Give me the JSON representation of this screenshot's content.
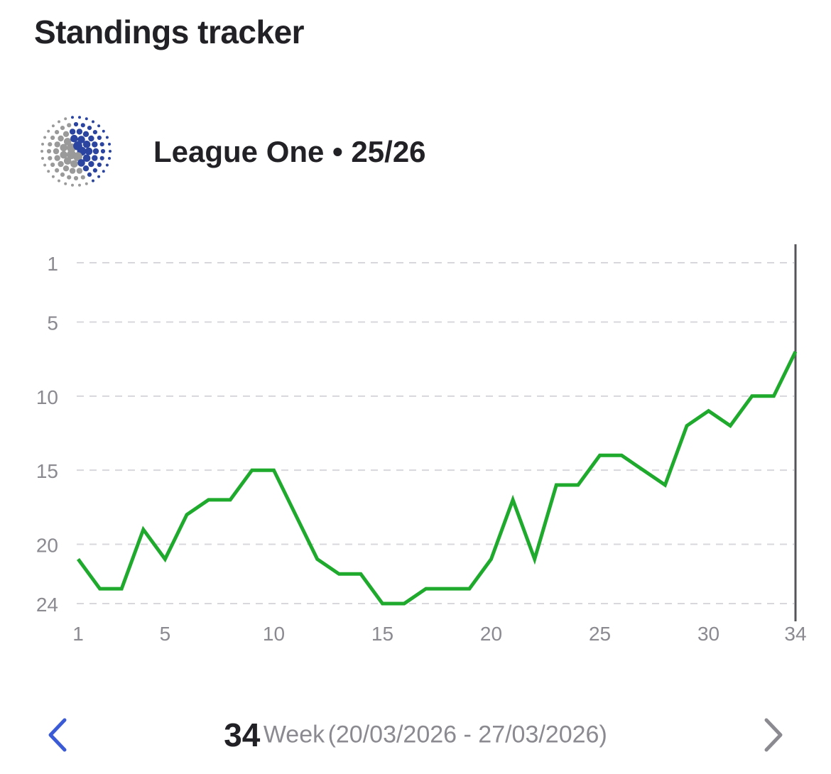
{
  "header": {
    "title": "Standings tracker"
  },
  "league": {
    "name": "League One • 25/26"
  },
  "colors": {
    "line": "#1faa2e",
    "text": "#222226",
    "muted": "#8a8a90",
    "prev": "#3b5bd6",
    "next": "#8a8a90"
  },
  "icons": {
    "prev": "chevron-left-icon",
    "next": "chevron-right-icon",
    "logo": "league-one-logo"
  },
  "chart_data": {
    "type": "line",
    "title": "",
    "xlabel": "",
    "ylabel": "",
    "x": [
      1,
      2,
      3,
      4,
      5,
      6,
      7,
      8,
      9,
      10,
      11,
      12,
      13,
      14,
      15,
      16,
      17,
      18,
      19,
      20,
      21,
      22,
      23,
      24,
      25,
      26,
      27,
      28,
      29,
      30,
      31,
      32,
      33,
      34
    ],
    "series": [
      {
        "values": [
          21,
          23,
          23,
          19,
          21,
          18,
          17,
          17,
          15,
          15,
          18,
          21,
          22,
          22,
          24,
          24,
          23,
          23,
          23,
          21,
          17,
          21,
          16,
          16,
          14,
          14,
          15,
          16,
          12,
          11,
          12,
          10,
          10,
          7
        ]
      }
    ],
    "x_ticks": [
      "1",
      "5",
      "10",
      "15",
      "20",
      "25",
      "30",
      "34"
    ],
    "y_ticks": [
      "1",
      "5",
      "10",
      "15",
      "20",
      "24"
    ],
    "xlim": [
      1,
      34
    ],
    "ylim": [
      1,
      24
    ],
    "y_inverted": true,
    "grid": "horizontal-dashed",
    "marker_week": 34
  },
  "footer": {
    "week_number": "34",
    "week_label": "Week",
    "week_range": "(20/03/2026 - 27/03/2026)"
  }
}
